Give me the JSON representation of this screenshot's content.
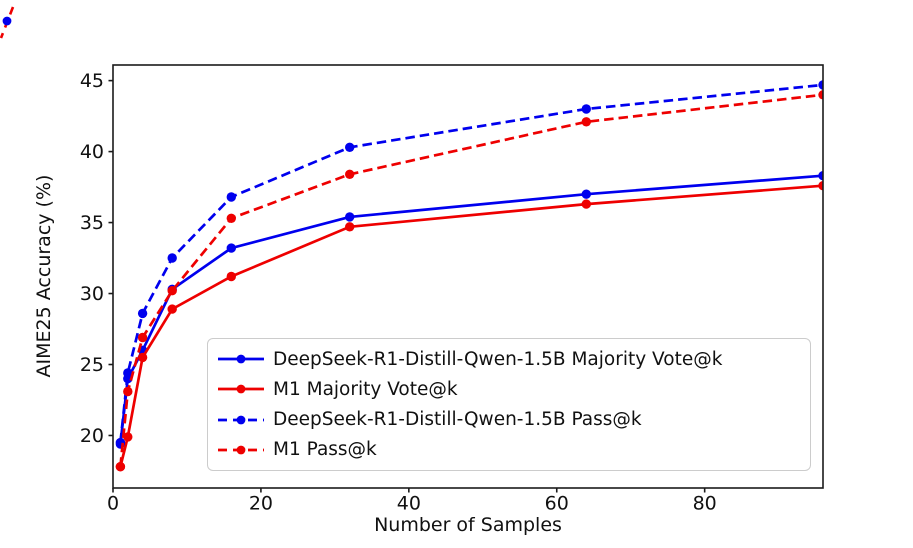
{
  "chart_data": {
    "type": "line",
    "x": [
      1,
      2,
      4,
      8,
      16,
      32,
      64,
      96
    ],
    "series": [
      {
        "name": "DeepSeek-R1-Distill-Qwen-1.5B Majority Vote@k",
        "color": "#0000ee",
        "style": "solid",
        "values": [
          19.4,
          24.0,
          26.0,
          30.3,
          33.2,
          35.4,
          37.0,
          38.3
        ]
      },
      {
        "name": "M1 Majority Vote@k",
        "color": "#ee0000",
        "style": "solid",
        "values": [
          17.8,
          19.9,
          25.5,
          28.9,
          31.2,
          34.7,
          36.3,
          37.6
        ]
      },
      {
        "name": "DeepSeek-R1-Distill-Qwen-1.5B Pass@k",
        "color": "#0000ee",
        "style": "dashed",
        "values": [
          19.5,
          24.4,
          28.6,
          32.5,
          36.8,
          40.3,
          43.0,
          44.7
        ]
      },
      {
        "name": "M1 Pass@k",
        "color": "#ee0000",
        "style": "dashed",
        "values": [
          17.8,
          23.1,
          26.9,
          30.2,
          35.3,
          38.4,
          42.1,
          44.0
        ]
      }
    ],
    "title": "",
    "xlabel": "Number of Samples",
    "ylabel": "AIME25 Accuracy (%)",
    "xlim": [
      0,
      96
    ],
    "ylim": [
      16.3,
      46.1
    ],
    "xticks": [
      0,
      20,
      40,
      60,
      80
    ],
    "yticks": [
      20,
      25,
      30,
      35,
      40,
      45
    ],
    "grid": false,
    "legend_position": "inside lower-right",
    "colors": {
      "blue_series": "#0000ee",
      "red_series": "#ee0000",
      "axis": "#1a1a1a",
      "legend_border": "#cccccc"
    }
  }
}
